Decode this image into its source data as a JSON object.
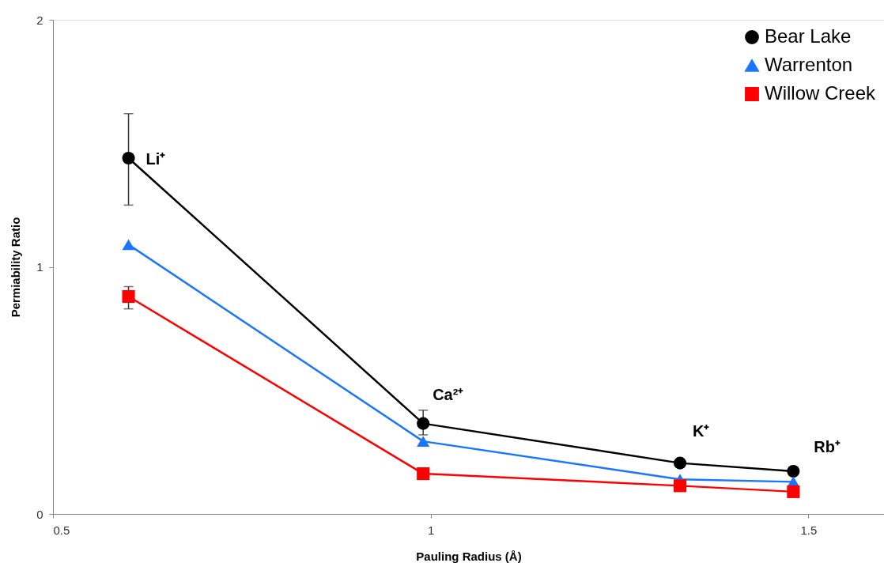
{
  "chart_data": {
    "type": "line",
    "xlabel": "Pauling Radius (Å)",
    "ylabel": "Permiability Ratio",
    "x": [
      0.6,
      0.99,
      1.33,
      1.48
    ],
    "xlim": [
      0.5,
      1.6
    ],
    "xticks": [
      0.5,
      1,
      1.5
    ],
    "ylim": [
      0,
      2
    ],
    "yticks": [
      0,
      1,
      2
    ],
    "grid": false,
    "legend": "top right",
    "line_style": "solid",
    "series": [
      {
        "name": "Bear Lake",
        "color": "#000000",
        "marker": "circle",
        "values": [
          1.44,
          0.366,
          0.206,
          0.173
        ],
        "errors": [
          [
            1.25,
            1.62
          ],
          [
            0.32,
            0.42
          ],
          null,
          null
        ]
      },
      {
        "name": "Warrenton",
        "color": "#1a75ff",
        "marker": "triangle",
        "values": [
          1.09,
          0.294,
          0.14,
          0.13
        ]
      },
      {
        "name": "Willow Creek",
        "color": "#ff0000",
        "marker": "square",
        "values": [
          0.88,
          0.163,
          0.114,
          0.09
        ],
        "errors": [
          [
            0.83,
            0.92
          ],
          null,
          null,
          null
        ]
      }
    ],
    "annotations": [
      {
        "text": "Li⁺",
        "x": 0.6,
        "y": 1.44
      },
      {
        "text": "Ca²⁺",
        "x": 0.99,
        "y": 0.366
      },
      {
        "text": "K⁺",
        "x": 1.33,
        "y": 0.206
      },
      {
        "text": "Rb⁺",
        "x": 1.48,
        "y": 0.173
      }
    ]
  }
}
